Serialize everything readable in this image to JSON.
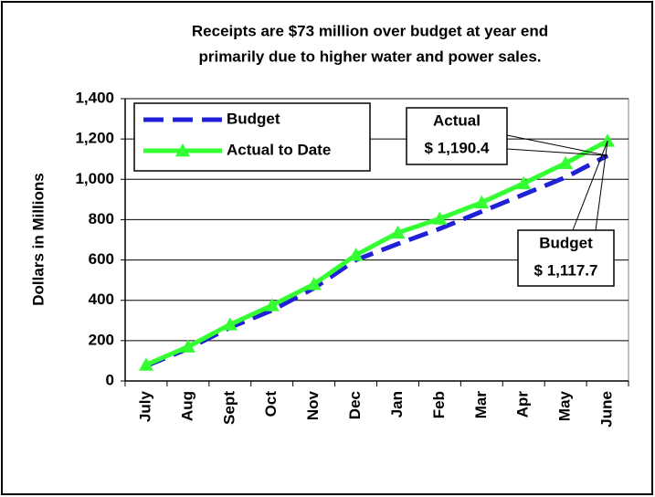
{
  "chart_data": {
    "type": "line",
    "title": [
      "Receipts are $73 million over budget at year end",
      "primarily due to higher water and power sales."
    ],
    "y_label": "Dollars in Millions",
    "categories": [
      "July",
      "Aug",
      "Sept",
      "Oct",
      "Nov",
      "Dec",
      "Jan",
      "Feb",
      "Mar",
      "Apr",
      "May",
      "June"
    ],
    "series": [
      {
        "name": "Budget",
        "color": "#2020d8",
        "dashed": true,
        "values": [
          75,
          160,
          265,
          350,
          460,
          600,
          680,
          755,
          840,
          925,
          1010,
          1117.7
        ]
      },
      {
        "name": "Actual to Date",
        "color": "#33ff33",
        "marker": "triangle",
        "values": [
          80,
          170,
          280,
          375,
          480,
          625,
          735,
          805,
          885,
          980,
          1080,
          1190.4
        ]
      }
    ],
    "annotations": [
      {
        "lines": [
          "Actual",
          "$ 1,190.4"
        ]
      },
      {
        "lines": [
          "Budget",
          "$ 1,117.7"
        ]
      }
    ],
    "ylim": [
      0,
      1400
    ],
    "yticks": [
      0,
      200,
      400,
      600,
      800,
      {
        "value": 1000,
        "label": "1,000"
      },
      {
        "value": 1200,
        "label": "1,200"
      },
      {
        "value": 1400,
        "label": "1,400"
      }
    ],
    "grid": true
  }
}
